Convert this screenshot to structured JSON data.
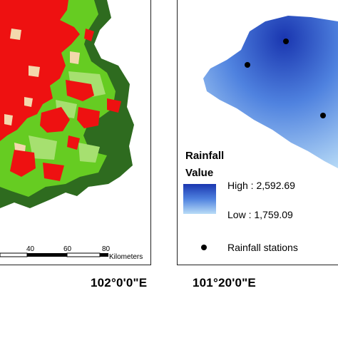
{
  "left_map": {
    "scale_ticks": [
      "40",
      "60",
      "80"
    ],
    "scale_unit": "Kilometers",
    "longitude_label": "102°0'0\"E",
    "colors": {
      "urban": "#ee1111",
      "green": "#66cc22",
      "forest": "#2e6b1f",
      "bare": "#f3d8ad"
    }
  },
  "right_map": {
    "longitude_label": "101°20'0\"E",
    "legend": {
      "title_line1": "Rainfall",
      "title_line2": "Value",
      "high_label": "High : 2,592.69",
      "low_label": "Low : 1,759.09",
      "stations_label": "Rainfall stations"
    },
    "colors": {
      "high": "#1a36b0",
      "mid": "#4f82df",
      "low": "#b9dcf7",
      "station": "#000000"
    }
  }
}
